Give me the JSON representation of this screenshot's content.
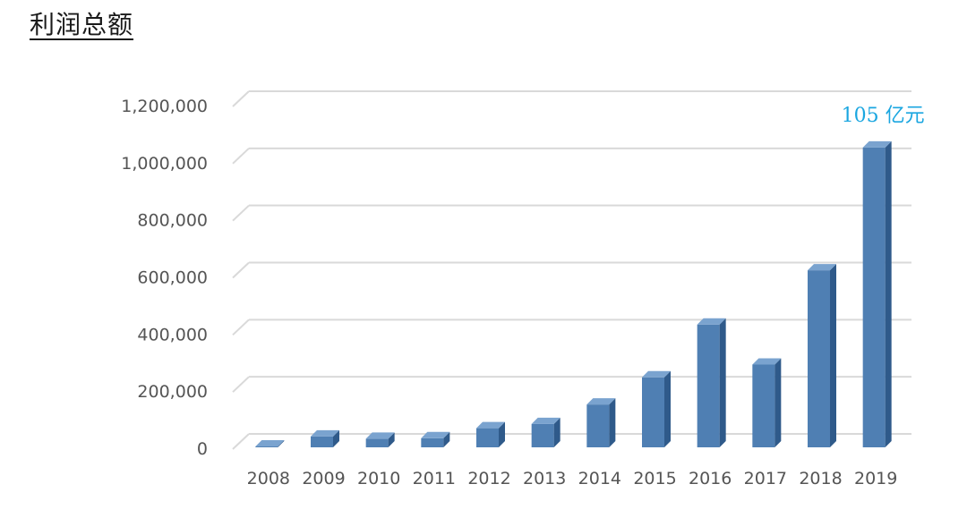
{
  "header": {
    "title": "利润总额"
  },
  "chart_data": {
    "type": "bar",
    "title": "利润总额",
    "xlabel": "",
    "ylabel": "",
    "ylim": [
      0,
      1200000
    ],
    "yticks": [
      "0",
      "200,000",
      "400,000",
      "600,000",
      "800,000",
      "1,000,000",
      "1,200,000"
    ],
    "categories": [
      "2008",
      "2009",
      "2010",
      "2011",
      "2012",
      "2013",
      "2014",
      "2015",
      "2016",
      "2017",
      "2018",
      "2019"
    ],
    "values": [
      3000,
      38000,
      30000,
      32000,
      67000,
      82000,
      150000,
      245000,
      430000,
      290000,
      620000,
      1050000
    ],
    "grid": true,
    "legend": "none",
    "annotation": {
      "text": "105 亿元",
      "category": "2019"
    },
    "colors": {
      "bar": "#4f7fb3",
      "bar_side": "#2f5a8a",
      "bar_top": "#7aa3cf",
      "grid": "#d9d9d9",
      "annotation": "#1aa6e0"
    }
  }
}
